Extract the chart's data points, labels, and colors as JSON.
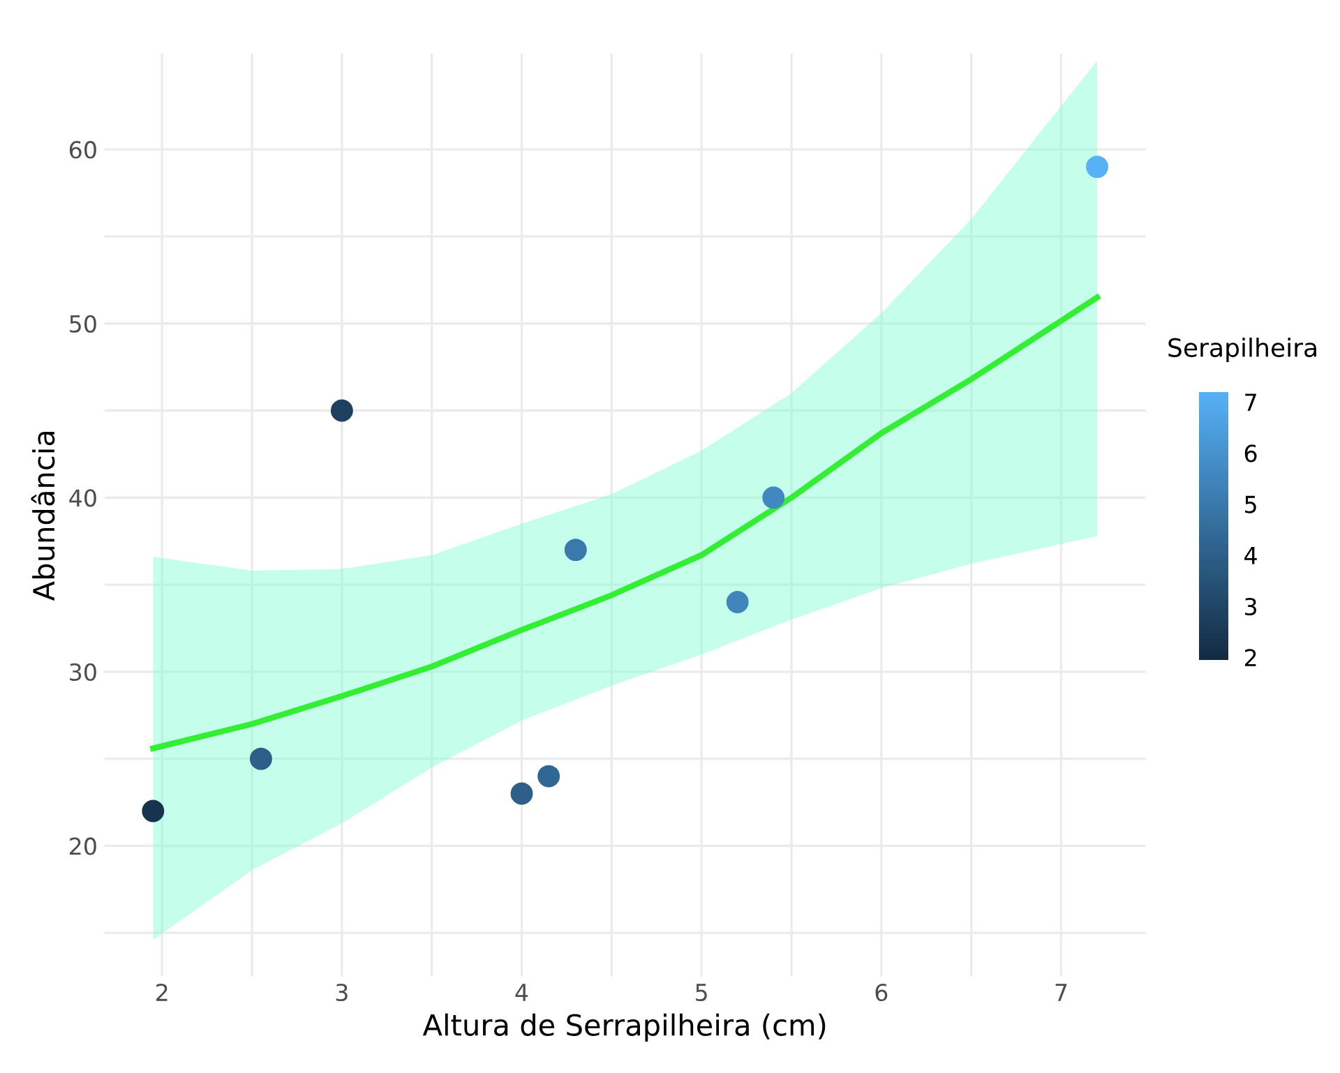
{
  "chart_data": {
    "type": "scatter",
    "xlabel": "Altura de Serrapilheira (cm)",
    "ylabel": "Abundância",
    "clabel": "Serapilheira",
    "xlim": [
      1.68,
      7.47
    ],
    "ylim": [
      12.5,
      65.5
    ],
    "xticks": [
      2,
      {
        "value": 2.5,
        "label": null
      },
      3,
      {
        "value": 3.5,
        "label": null
      },
      4,
      {
        "value": 4.5,
        "label": null
      },
      5,
      {
        "value": 5.5,
        "label": null
      },
      6,
      {
        "value": 6.5,
        "label": null
      },
      7
    ],
    "yticks": [
      {
        "value": 15,
        "label": null
      },
      20,
      {
        "value": 25,
        "label": null
      },
      30,
      {
        "value": 35,
        "label": null
      },
      40,
      {
        "value": 45,
        "label": null
      },
      50,
      {
        "value": 55,
        "label": null
      },
      60
    ],
    "clim": [
      1.95,
      7.2
    ],
    "cticks": [
      2,
      3,
      4,
      5,
      6,
      7
    ],
    "grid": true,
    "series": [
      {
        "marker": "circle",
        "colors": [
          "#17344f",
          "#2d5f89",
          "#1e4160",
          "#2d5f89",
          "#316794",
          "#3a79ac",
          "#4086bd",
          "#4288c0",
          "#56b1f7"
        ],
        "x": [
          1.95,
          2.55,
          3.0,
          4.0,
          4.15,
          4.3,
          5.2,
          5.4,
          7.2
        ],
        "values": [
          22,
          25,
          45,
          23,
          24,
          37,
          34,
          40,
          59
        ],
        "cvalues": [
          2.3,
          4.0,
          2.8,
          4.0,
          4.3,
          5.0,
          5.5,
          5.6,
          7.2
        ]
      },
      {
        "type": "line",
        "color": "#33ee33",
        "x": [
          1.95,
          2.5,
          3.0,
          3.5,
          4.0,
          4.5,
          5.0,
          5.5,
          6.0,
          6.5,
          7.2
        ],
        "values": [
          25.6,
          27.0,
          28.6,
          30.3,
          32.4,
          34.4,
          36.7,
          40.0,
          43.7,
          46.8,
          51.5
        ],
        "lower": [
          14.6,
          18.6,
          21.3,
          24.5,
          27.2,
          29.2,
          31.0,
          33.0,
          34.8,
          36.2,
          37.8
        ],
        "upper": [
          36.6,
          35.8,
          35.9,
          36.7,
          38.5,
          40.2,
          42.7,
          46.0,
          50.6,
          56.0,
          65.1
        ]
      }
    ]
  }
}
